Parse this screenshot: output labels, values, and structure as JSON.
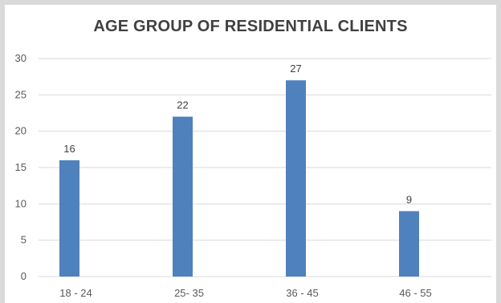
{
  "chart_data": {
    "type": "bar",
    "title": "AGE GROUP OF RESIDENTIAL CLIENTS",
    "categories": [
      "18 - 24",
      "25- 35",
      "36 - 45",
      "46 - 55"
    ],
    "values": [
      16,
      22,
      27,
      9
    ],
    "ylim": [
      0,
      30
    ],
    "yticks": [
      0,
      5,
      10,
      15,
      20,
      25,
      30
    ],
    "grid": true,
    "bar_color": "#4f81bd",
    "grid_color": "#d9d9d9",
    "data_labels": true,
    "legend": "none"
  }
}
